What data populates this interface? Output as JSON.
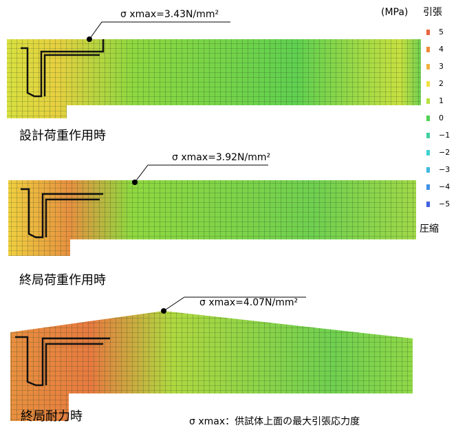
{
  "legend": {
    "unit": "(MPa)",
    "tension": "引張",
    "compression": "圧縮",
    "ticks": [
      "5",
      "4",
      "3",
      "2",
      "1",
      "0",
      "−1",
      "−2",
      "−3",
      "−4",
      "−5"
    ]
  },
  "panels": [
    {
      "label": "設計荷重作用時",
      "annotation": "σ xmax=3.43N/mm²"
    },
    {
      "label": "終局荷重作用時",
      "annotation": "σ xmax=3.92N/mm²"
    },
    {
      "label": "終局耐力時",
      "annotation": "σ xmax=4.07N/mm²"
    }
  ],
  "note": "σ xmax：供試体上面の最大引張応力度"
}
